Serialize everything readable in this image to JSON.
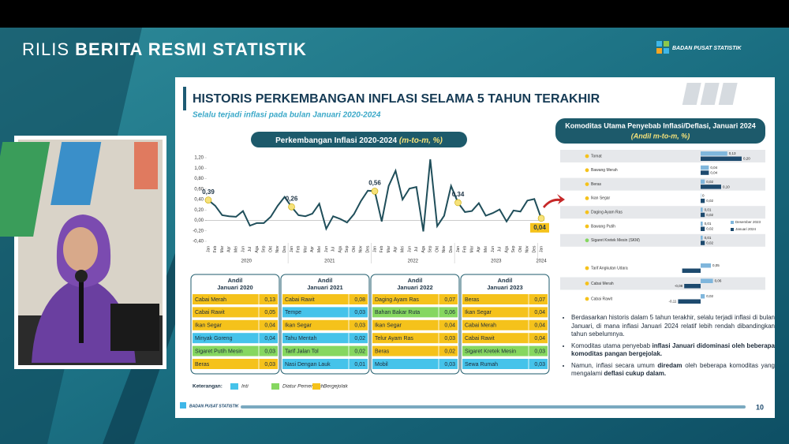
{
  "header": {
    "title_light": "RILIS",
    "title_bold": "BERITA RESMI STATISTIK",
    "logo": "BADAN PUSAT STATISTIK"
  },
  "slide": {
    "title": "HISTORIS PERKEMBANGAN INFLASI SELAMA 5 TAHUN TERAKHIR",
    "subtitle": "Selalu terjadi inflasi pada bulan Januari 2020-2024",
    "page": "10",
    "footer_logo": "BADAN PUSAT STATISTIK"
  },
  "chart_data": [
    {
      "type": "line",
      "title": "Perkembangan Inflasi 2020-2024",
      "title_unit": "(m-to-m, %)",
      "color": "#1f4e5a",
      "marker_color": "#f6e27a",
      "categories": [
        "Jan",
        "Feb",
        "Mar",
        "Apr",
        "Mei",
        "Jun",
        "Jul",
        "Agu",
        "Sep",
        "Okt",
        "Nov",
        "Des",
        "Jan",
        "Feb",
        "Mar",
        "Apr",
        "Mei",
        "Jun",
        "Jul",
        "Agu",
        "Sep",
        "Okt",
        "Nov",
        "Des",
        "Jan",
        "Feb",
        "Mar",
        "Apr",
        "Mei",
        "Jun",
        "Jul",
        "Agu",
        "Sep",
        "Okt",
        "Nov",
        "Des",
        "Jan",
        "Feb",
        "Mar",
        "Apr",
        "Mei",
        "Jun",
        "Jul",
        "Agu",
        "Sep",
        "Okt",
        "Nov",
        "Des",
        "Jan"
      ],
      "years": [
        "2020",
        "2021",
        "2022",
        "2023",
        "2024"
      ],
      "values": [
        0.39,
        0.28,
        0.1,
        0.08,
        0.07,
        0.18,
        -0.1,
        -0.05,
        -0.05,
        0.07,
        0.28,
        0.45,
        0.26,
        0.1,
        0.08,
        0.13,
        0.32,
        -0.16,
        0.08,
        0.03,
        -0.04,
        0.12,
        0.37,
        0.57,
        0.56,
        -0.02,
        0.66,
        0.95,
        0.4,
        0.61,
        0.64,
        -0.21,
        1.17,
        -0.11,
        0.09,
        0.66,
        0.34,
        0.16,
        0.18,
        0.33,
        0.09,
        0.14,
        0.21,
        -0.02,
        0.19,
        0.17,
        0.38,
        0.41,
        0.04
      ],
      "value_labels": [
        "0,39",
        null,
        null,
        null,
        null,
        null,
        null,
        null,
        null,
        null,
        null,
        null,
        "0,26",
        null,
        null,
        null,
        null,
        null,
        null,
        null,
        null,
        null,
        null,
        null,
        "0,56",
        null,
        null,
        null,
        null,
        null,
        null,
        null,
        null,
        null,
        null,
        null,
        "0,34",
        null,
        null,
        null,
        null,
        null,
        null,
        null,
        null,
        null,
        null,
        null,
        "0,04"
      ],
      "ylim": [
        -0.4,
        1.2
      ],
      "yticks": [
        {
          "value": -0.4,
          "label": "-0,40"
        },
        {
          "value": -0.2,
          "label": "-0,20"
        },
        {
          "value": 0,
          "label": "0,00"
        },
        {
          "value": 0.2,
          "label": "0,20"
        },
        {
          "value": 0.4,
          "label": "0,40"
        },
        {
          "value": 0.6,
          "label": "0,60"
        },
        {
          "value": 0.8,
          "label": "0,80"
        },
        {
          "value": 1.0,
          "label": "1,00"
        },
        {
          "value": 1.2,
          "label": "1,20"
        }
      ],
      "grid": false
    },
    {
      "type": "barh",
      "title": "Komoditas Utama Penyebab Inflasi/Deflasi, Januari 2024",
      "title_unit": "(Andil m-to-m, %)",
      "categories": [
        "Tomat",
        "Bawang Merah",
        "Beras",
        "Ikan Segar",
        "Daging Ayam Ras",
        "Bawang Putih",
        "Sigaret Kretek Mesin (SKM)",
        "Tarif Angkutan Udara",
        "Cabai Merah",
        "Cabai Rawit"
      ],
      "xlim": [
        -0.2,
        0.3
      ],
      "series": [
        {
          "name": "Desember 2023",
          "color": "#7fb6dc",
          "values": [
            0.13,
            0.04,
            0.02,
            0,
            0.01,
            0.01,
            0.01,
            0.05,
            0.06,
            0.02
          ],
          "value_labels": [
            "0,13",
            "0,04",
            "0,02",
            "0",
            "0,01",
            "0,01",
            "0,01",
            "0,05",
            "0,06",
            "0,02"
          ]
        },
        {
          "name": "Januari 2024",
          "color": "#1d4a6e",
          "values": [
            0.2,
            0.04,
            0.1,
            0.02,
            0.02,
            0.02,
            0.02,
            -0.09,
            -0.08,
            -0.11
          ],
          "value_labels": [
            "0,20",
            "0,04",
            "0,10",
            "0,02",
            "0,02",
            "0,02",
            "0,02",
            null,
            "-0,08",
            "-0,11"
          ]
        }
      ]
    }
  ],
  "andil": {
    "tables": [
      {
        "title": "Andil",
        "period": "Januari 2020",
        "rows": [
          {
            "name": "Cabai Merah",
            "value": "0,13",
            "group": "Bergejolak"
          },
          {
            "name": "Cabai Rawit",
            "value": "0,05",
            "group": "Bergejolak"
          },
          {
            "name": "Ikan Segar",
            "value": "0,04",
            "group": "Bergejolak"
          },
          {
            "name": "Minyak Goreng",
            "value": "0,04",
            "group": "Inti"
          },
          {
            "name": "Sigaret Putih Mesin",
            "value": "0,03",
            "group": "Diatur Pemerintah"
          },
          {
            "name": "Beras",
            "value": "0,03",
            "group": "Bergejolak"
          }
        ]
      },
      {
        "title": "Andil",
        "period": "Januari 2021",
        "rows": [
          {
            "name": "Cabai Rawit",
            "value": "0,08",
            "group": "Bergejolak"
          },
          {
            "name": "Tempe",
            "value": "0,03",
            "group": "Inti"
          },
          {
            "name": "Ikan Segar",
            "value": "0,03",
            "group": "Bergejolak"
          },
          {
            "name": "Tahu Mentah",
            "value": "0,02",
            "group": "Inti"
          },
          {
            "name": "Tarif Jalan Tol",
            "value": "0,02",
            "group": "Diatur Pemerintah"
          },
          {
            "name": "Nasi Dengan Lauk",
            "value": "0,01",
            "group": "Inti"
          }
        ]
      },
      {
        "title": "Andil",
        "period": "Januari 2022",
        "rows": [
          {
            "name": "Daging Ayam Ras",
            "value": "0,07",
            "group": "Bergejolak"
          },
          {
            "name": "Bahan Bakar Ruta",
            "value": "0,06",
            "group": "Diatur Pemerintah"
          },
          {
            "name": "Ikan Segar",
            "value": "0,04",
            "group": "Bergejolak"
          },
          {
            "name": "Telur Ayam Ras",
            "value": "0,03",
            "group": "Bergejolak"
          },
          {
            "name": "Beras",
            "value": "0,02",
            "group": "Bergejolak"
          },
          {
            "name": "Mobil",
            "value": "0,03",
            "group": "Inti"
          }
        ]
      },
      {
        "title": "Andil",
        "period": "Januari 2023",
        "rows": [
          {
            "name": "Beras",
            "value": "0,07",
            "group": "Bergejolak"
          },
          {
            "name": "Ikan Segar",
            "value": "0,04",
            "group": "Bergejolak"
          },
          {
            "name": "Cabai Merah",
            "value": "0,04",
            "group": "Bergejolak"
          },
          {
            "name": "Cabai Rawit",
            "value": "0,04",
            "group": "Bergejolak"
          },
          {
            "name": "Sigaret Kretek Mesin",
            "value": "0,03",
            "group": "Diatur Pemerintah"
          },
          {
            "name": "Sewa Rumah",
            "value": "0,03",
            "group": "Inti"
          }
        ]
      }
    ],
    "legend": {
      "title": "Keterangan:",
      "groups": [
        {
          "label": "Inti",
          "color": "#45c3ea"
        },
        {
          "label": "Diatur Pemerintah",
          "color": "#86d760"
        },
        {
          "label": "Bergejolak",
          "color": "#f5c21b"
        }
      ]
    }
  },
  "bullets": [
    {
      "parts": [
        {
          "text": "Berdasarkan historis dalam 5 tahun terakhir, selalu terjadi inflasi di bulan Januari, di mana inflasi Januari 2024 relatif lebih rendah dibandingkan tahun sebelumnya.",
          "bold": false
        }
      ]
    },
    {
      "parts": [
        {
          "text": "Komoditas utama penyebab ",
          "bold": false
        },
        {
          "text": "inflasi Januari didominasi oleh beberapa komoditas pangan bergejolak.",
          "bold": true
        }
      ]
    },
    {
      "parts": [
        {
          "text": "Namun, inflasi secara umum ",
          "bold": false
        },
        {
          "text": "diredam",
          "bold": true
        },
        {
          "text": " oleh beberapa komoditas yang mengalami ",
          "bold": false
        },
        {
          "text": "deflasi cukup dalam.",
          "bold": true
        }
      ]
    }
  ]
}
